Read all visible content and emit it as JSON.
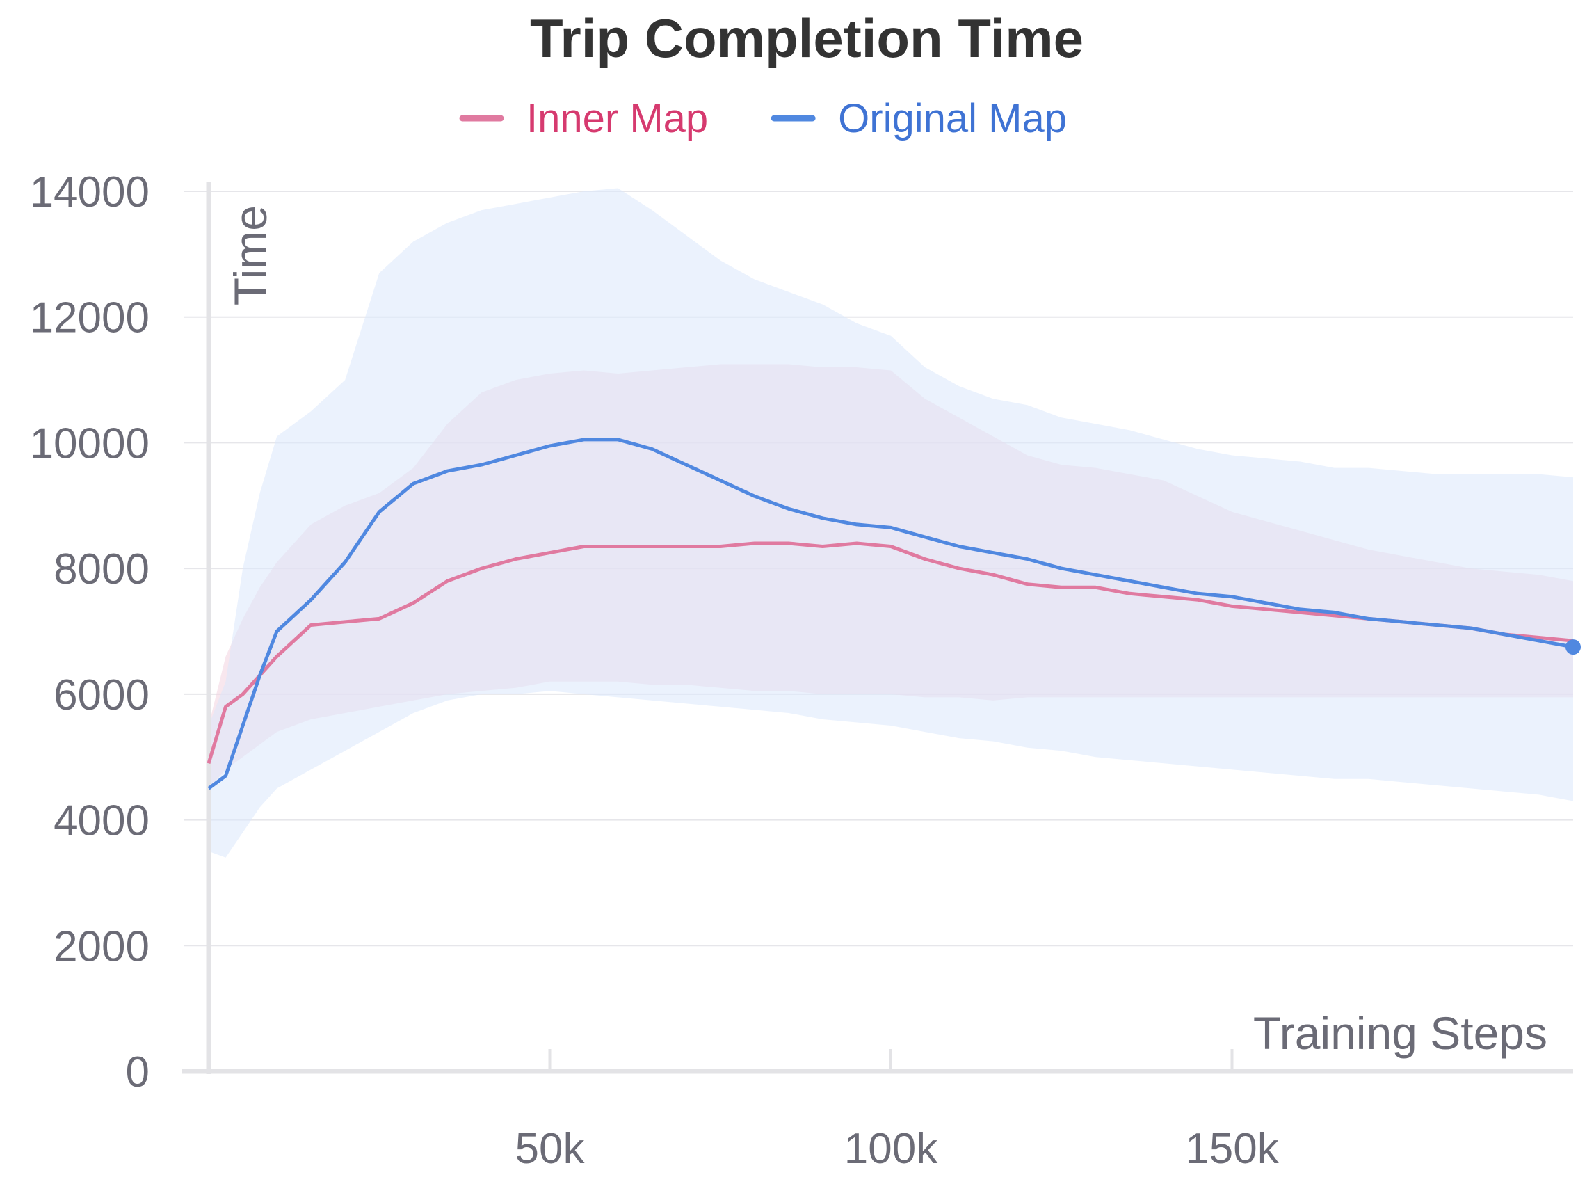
{
  "chart_data": {
    "type": "line",
    "title": "Trip Completion Time",
    "xlabel": "Training Steps",
    "ylabel": "Time",
    "xlim": [
      0,
      200000
    ],
    "ylim": [
      0,
      14000
    ],
    "xticks": [
      50000,
      100000,
      150000
    ],
    "xtick_labels": [
      "50k",
      "100k",
      "150k"
    ],
    "yticks": [
      0,
      2000,
      4000,
      6000,
      8000,
      10000,
      12000,
      14000
    ],
    "ytick_labels": [
      "0",
      "2000",
      "4000",
      "6000",
      "8000",
      "10000",
      "12000",
      "14000"
    ],
    "grid": true,
    "legend_position": "top-center",
    "series": [
      {
        "name": "Inner Map",
        "color": "#e07aa0",
        "text_color": "#d63a6f",
        "band_color": "#f3d3e0",
        "x": [
          0,
          2500,
          5000,
          7500,
          10000,
          15000,
          20000,
          25000,
          30000,
          35000,
          40000,
          45000,
          50000,
          55000,
          60000,
          65000,
          70000,
          75000,
          80000,
          85000,
          90000,
          95000,
          100000,
          105000,
          110000,
          115000,
          120000,
          125000,
          130000,
          135000,
          140000,
          145000,
          150000,
          155000,
          160000,
          165000,
          170000,
          175000,
          180000,
          185000,
          190000,
          195000,
          200000
        ],
        "values": [
          4900,
          5800,
          6000,
          6300,
          6600,
          7100,
          7150,
          7200,
          7450,
          7800,
          8000,
          8150,
          8250,
          8350,
          8350,
          8350,
          8350,
          8350,
          8400,
          8400,
          8350,
          8400,
          8350,
          8150,
          8000,
          7900,
          7750,
          7700,
          7700,
          7600,
          7550,
          7500,
          7400,
          7350,
          7300,
          7250,
          7200,
          7150,
          7100,
          7050,
          6950,
          6900,
          6850
        ],
        "lower": [
          4500,
          4800,
          5000,
          5200,
          5400,
          5600,
          5700,
          5800,
          5900,
          6000,
          6050,
          6100,
          6200,
          6200,
          6200,
          6150,
          6150,
          6100,
          6050,
          6050,
          6000,
          6000,
          6000,
          5950,
          5950,
          5900,
          5950,
          5950,
          5950,
          5950,
          5950,
          5950,
          5950,
          5950,
          5950,
          5950,
          5950,
          5950,
          5950,
          5950,
          5950,
          5950,
          5950
        ],
        "upper": [
          5500,
          6600,
          7200,
          7700,
          8100,
          8700,
          9000,
          9200,
          9600,
          10300,
          10800,
          11000,
          11100,
          11150,
          11100,
          11150,
          11200,
          11250,
          11250,
          11250,
          11200,
          11200,
          11150,
          10700,
          10400,
          10100,
          9800,
          9650,
          9600,
          9500,
          9400,
          9150,
          8900,
          8750,
          8600,
          8450,
          8300,
          8200,
          8100,
          8000,
          7950,
          7900,
          7800
        ]
      },
      {
        "name": "Original Map",
        "color": "#5088e0",
        "text_color": "#3f73d4",
        "band_color": "#dbe7fb",
        "x": [
          0,
          2500,
          5000,
          7500,
          10000,
          15000,
          20000,
          25000,
          30000,
          35000,
          40000,
          45000,
          50000,
          55000,
          60000,
          65000,
          70000,
          75000,
          80000,
          85000,
          90000,
          95000,
          100000,
          105000,
          110000,
          115000,
          120000,
          125000,
          130000,
          135000,
          140000,
          145000,
          150000,
          155000,
          160000,
          165000,
          170000,
          175000,
          180000,
          185000,
          190000,
          195000,
          200000
        ],
        "values": [
          4500,
          4700,
          5500,
          6300,
          7000,
          7500,
          8100,
          8900,
          9350,
          9550,
          9650,
          9800,
          9950,
          10050,
          10050,
          9900,
          9650,
          9400,
          9150,
          8950,
          8800,
          8700,
          8650,
          8500,
          8350,
          8250,
          8150,
          8000,
          7900,
          7800,
          7700,
          7600,
          7550,
          7450,
          7350,
          7300,
          7200,
          7150,
          7100,
          7050,
          6950,
          6850,
          6750
        ],
        "lower": [
          3500,
          3400,
          3800,
          4200,
          4500,
          4800,
          5100,
          5400,
          5700,
          5900,
          6000,
          6000,
          6050,
          6000,
          5950,
          5900,
          5850,
          5800,
          5750,
          5700,
          5600,
          5550,
          5500,
          5400,
          5300,
          5250,
          5150,
          5100,
          5000,
          4950,
          4900,
          4850,
          4800,
          4750,
          4700,
          4650,
          4650,
          4600,
          4550,
          4500,
          4450,
          4400,
          4300
        ],
        "upper": [
          5500,
          6200,
          8000,
          9200,
          10100,
          10500,
          11000,
          12700,
          13200,
          13500,
          13700,
          13800,
          13900,
          14000,
          14050,
          13700,
          13300,
          12900,
          12600,
          12400,
          12200,
          11900,
          11700,
          11200,
          10900,
          10700,
          10600,
          10400,
          10300,
          10200,
          10050,
          9900,
          9800,
          9750,
          9700,
          9600,
          9600,
          9550,
          9500,
          9500,
          9500,
          9500,
          9450
        ]
      }
    ]
  }
}
